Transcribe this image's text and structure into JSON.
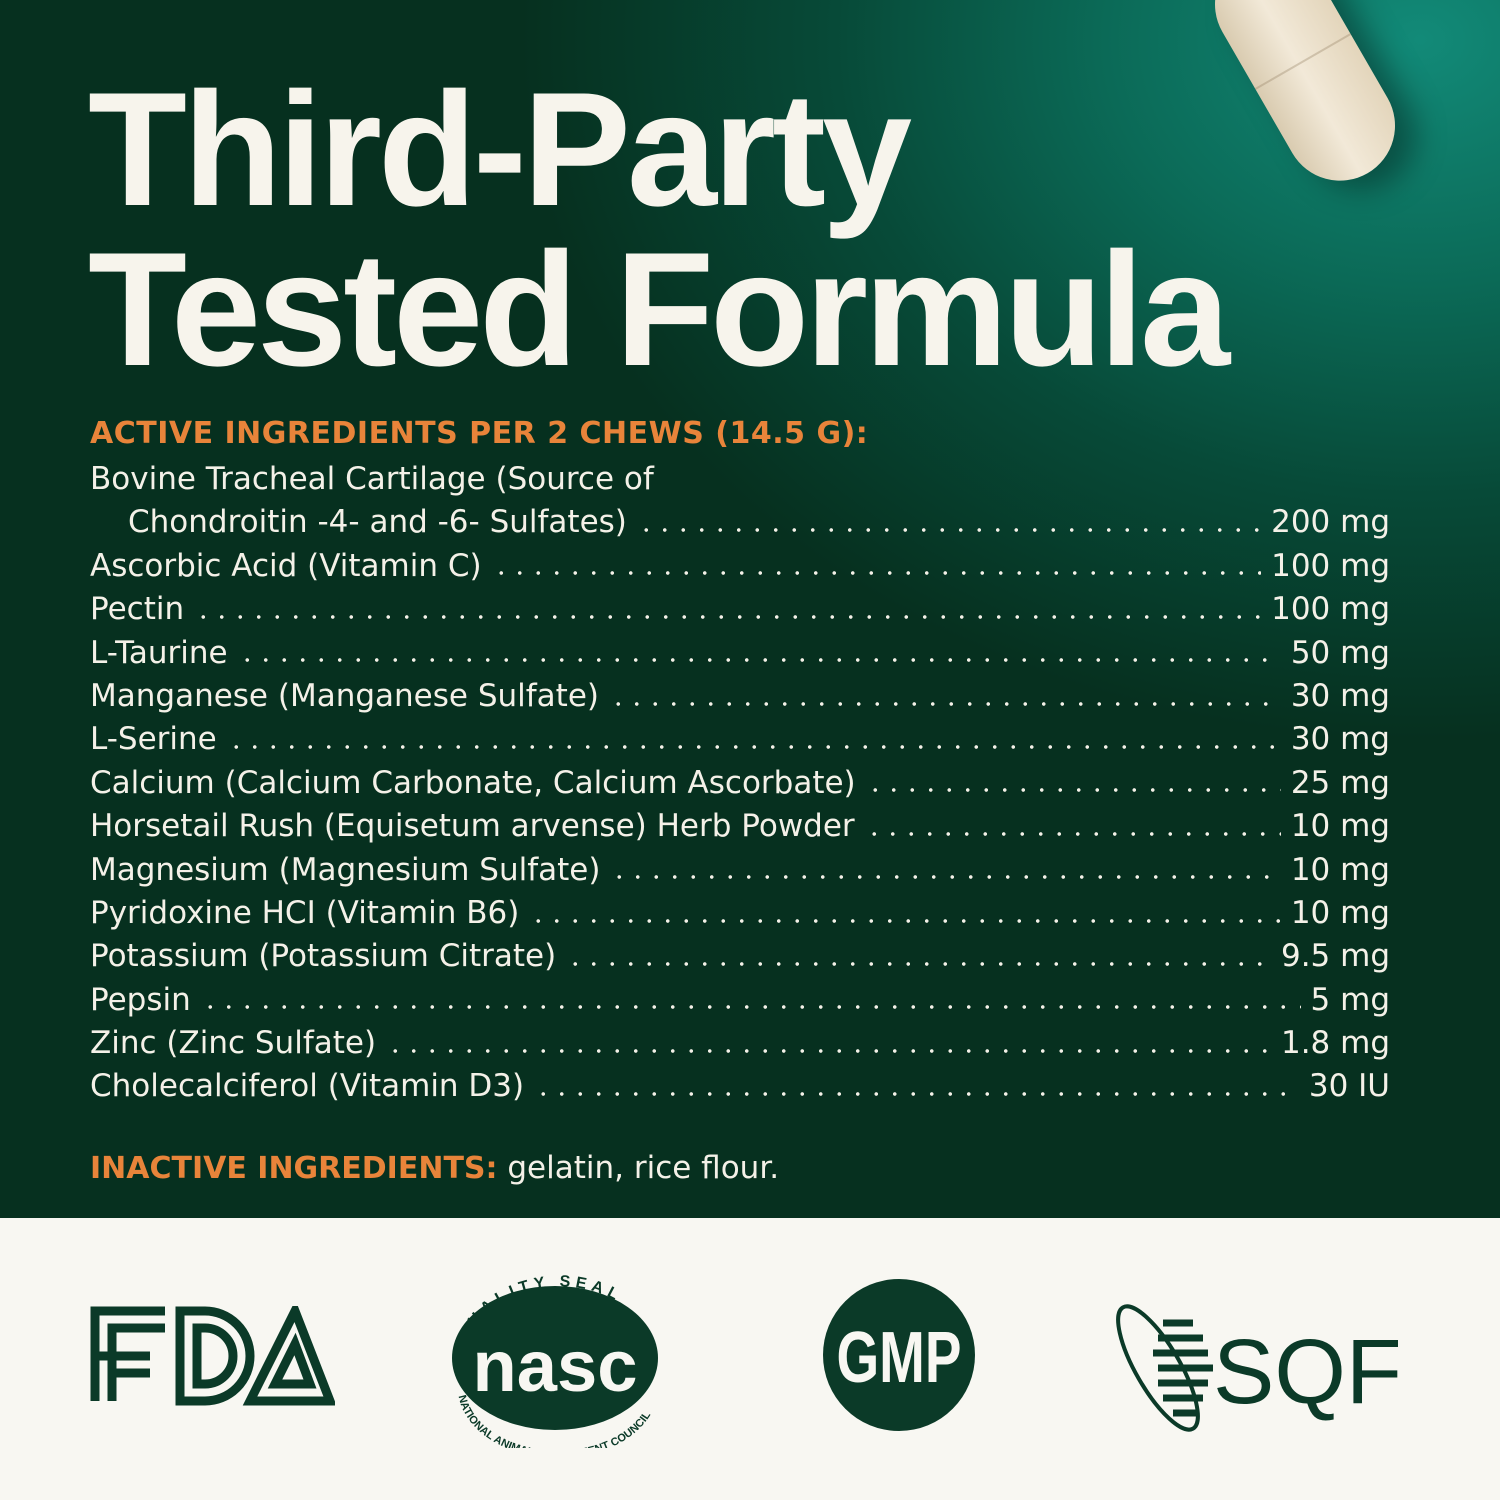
{
  "colors": {
    "background": "#06301f",
    "accent": "#e8843a",
    "text": "#f4f1e8",
    "logo": "#0b3a28",
    "panel": "#f8f7f2"
  },
  "title": {
    "line1": "Third-Party",
    "line2": "Tested Formula"
  },
  "active": {
    "heading": "ACTIVE INGREDIENTS PER 2 CHEWS (14.5 G):",
    "first_line": "Bovine Tracheal Cartilage (Source of",
    "items": [
      {
        "name": "Chondroitin -4- and -6- Sulfates)",
        "amount": "200 mg"
      },
      {
        "name": "Ascorbic Acid (Vitamin C)",
        "amount": "100 mg"
      },
      {
        "name": "Pectin",
        "amount": "100 mg"
      },
      {
        "name": "L-Taurine",
        "amount": "50 mg"
      },
      {
        "name": "Manganese (Manganese Sulfate)",
        "amount": "30 mg"
      },
      {
        "name": "L-Serine",
        "amount": "30 mg"
      },
      {
        "name": "Calcium (Calcium Carbonate, Calcium Ascorbate)",
        "amount": "25 mg"
      },
      {
        "name": "Horsetail Rush (Equisetum arvense) Herb Powder",
        "amount": "10 mg"
      },
      {
        "name": "Magnesium (Magnesium Sulfate)",
        "amount": "10 mg"
      },
      {
        "name": "Pyridoxine HCI (Vitamin B6)",
        "amount": "10 mg"
      },
      {
        "name": "Potassium (Potassium Citrate)",
        "amount": "9.5 mg"
      },
      {
        "name": "Pepsin",
        "amount": "5 mg"
      },
      {
        "name": "Zinc (Zinc Sulfate)",
        "amount": "1.8 mg"
      },
      {
        "name": "Cholecalciferol (Vitamin D3)",
        "amount": "30 IU"
      }
    ]
  },
  "inactive": {
    "label": "INACTIVE INGREDIENTS:",
    "value": " gelatin, rice flour."
  },
  "logos": {
    "fda": "FDA",
    "nasc_top": "QUALITY SEAL",
    "nasc_mid": "nasc",
    "nasc_bottom": "NATIONAL ANIMAL SUPPLEMENT COUNCIL",
    "gmp": "GMP",
    "sqf": "SQF"
  }
}
